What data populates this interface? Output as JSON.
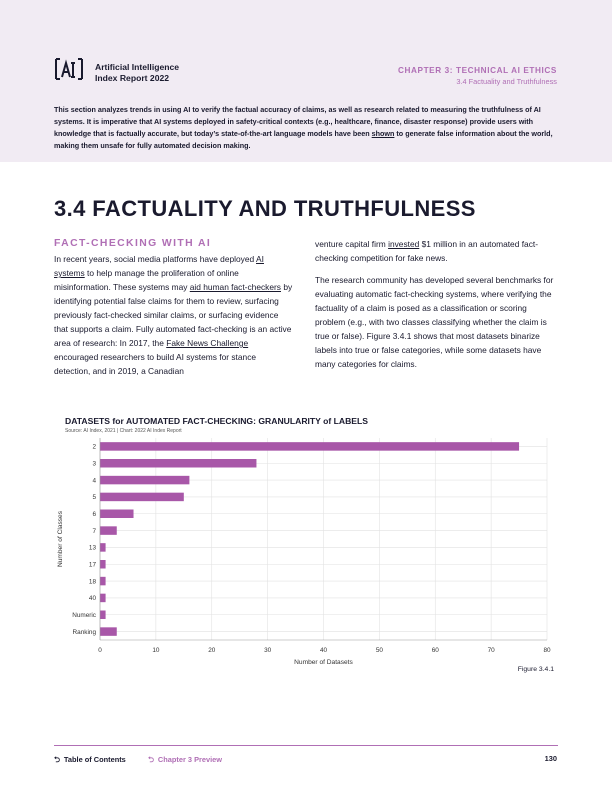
{
  "header": {
    "logo_lines": [
      "Artificial Intelligence",
      "Index Report 2022"
    ],
    "chapter": "CHAPTER 3: TECHNICAL AI ETHICS",
    "section": "3.4 Factuality and Truthfulness",
    "intro_before_link": "This section analyzes trends in using AI to verify the factual accuracy of claims, as well as research related to measuring the truthfulness of AI systems. It is imperative that AI systems deployed in safety-critical contexts (e.g., healthcare, finance, disaster response) provide users with knowledge that is factually accurate, but today’s state-of-the-art language models have been ",
    "intro_link": "shown",
    "intro_after_link": " to generate false information about the world, making them unsafe for fully automated decision making."
  },
  "section_title": "3.4 FACTUALITY AND TRUTHFULNESS",
  "subhead": "FACT-CHECKING WITH AI",
  "left_col": {
    "t1": "In recent years, social media platforms have deployed ",
    "l1": "AI systems",
    "t2": " to help manage the proliferation of online misinformation. These systems may ",
    "l2": "aid human fact-checkers",
    "t3": " by identifying potential false claims for them to review, surfacing previously fact-checked similar claims, or surfacing evidence that supports a claim. Fully automated fact-checking is an active area of research: In 2017, the ",
    "l3": "Fake News Challenge",
    "t4": " encouraged researchers to build AI systems for stance detection, and in 2019, a Canadian"
  },
  "right_col": {
    "t1": "venture capital firm ",
    "l1": "invested",
    "t2": " $1 million in an automated fact-checking competition for fake news.",
    "p2": "The research community has developed several benchmarks for evaluating automatic fact-checking systems, where verifying the factuality of a claim is posed as a classification or scoring problem (e.g., with two classes classifying whether the claim is true or false). Figure 3.4.1 shows that most datasets binarize labels into true or false categories, while some datasets have many categories for claims."
  },
  "chart_data": {
    "type": "bar",
    "orientation": "horizontal",
    "title": "DATASETS for AUTOMATED FACT-CHECKING: GRANULARITY of LABELS",
    "source": "Source: AI Index, 2021 | Chart: 2022 AI Index Report",
    "categories": [
      "2",
      "3",
      "4",
      "5",
      "6",
      "7",
      "13",
      "17",
      "18",
      "40",
      "Numeric",
      "Ranking"
    ],
    "values": [
      75,
      28,
      16,
      15,
      6,
      3,
      1,
      1,
      1,
      1,
      1,
      3
    ],
    "xlabel": "Number of Datasets",
    "ylabel": "Number of Classes",
    "xlim": [
      0,
      80
    ],
    "xticks": [
      0,
      10,
      20,
      30,
      40,
      50,
      60,
      70,
      80
    ],
    "grid": true,
    "bar_color": "#a857a8"
  },
  "figure_label": "Figure 3.4.1",
  "footer": {
    "toc": "Table of Contents",
    "chapter_preview": "Chapter 3 Preview",
    "page": "130"
  }
}
